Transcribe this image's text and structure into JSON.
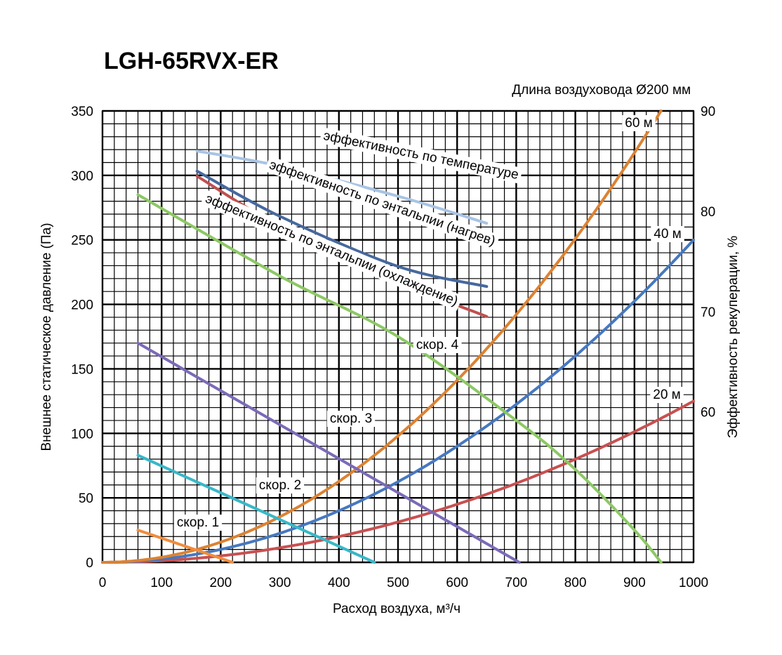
{
  "chart_data": {
    "type": "line",
    "title": "LGH-65RVX-ER",
    "subtitle": "Длина воздуховода Ø200 мм",
    "xlabel": "Расход воздуха, м³/ч",
    "ylabel": "Внешнее статическое давление (Па)",
    "y2label": "Эффективность рекуперации, %",
    "xlim": [
      0,
      1000
    ],
    "ylim": [
      0,
      350
    ],
    "y2lim": [
      45,
      90
    ],
    "x_ticks": [
      "0",
      "100",
      "200",
      "300",
      "400",
      "500",
      "600",
      "700",
      "800",
      "900",
      "1000"
    ],
    "y_ticks": [
      "0",
      "50",
      "100",
      "150",
      "200",
      "250",
      "300",
      "350"
    ],
    "y2_ticks": [
      "60",
      "70",
      "80",
      "90"
    ],
    "grid": true,
    "fan_curves": [
      {
        "name": "скор. 1",
        "color": "#f08c3c",
        "x": [
          60,
          220
        ],
        "y": [
          25,
          0
        ]
      },
      {
        "name": "скор. 2",
        "color": "#38b8c8",
        "x": [
          60,
          460
        ],
        "y": [
          83,
          0
        ]
      },
      {
        "name": "скор. 3",
        "color": "#7b6ab8",
        "x": [
          60,
          705
        ],
        "y": [
          170,
          0
        ]
      },
      {
        "name": "скор. 4",
        "color": "#8cc864",
        "x": [
          60,
          300,
          500,
          700,
          800,
          900,
          945
        ],
        "y": [
          285,
          222,
          175,
          110,
          72,
          25,
          0
        ]
      }
    ],
    "duct_curves": [
      {
        "name": "20 м",
        "color": "#c85050",
        "k": 0.000125
      },
      {
        "name": "40 м",
        "color": "#4678c0",
        "k": 0.00025
      },
      {
        "name": "60 м",
        "color": "#dc8232",
        "k": 0.000392
      }
    ],
    "efficiency_curves": [
      {
        "name": "эффективность по температуре",
        "color": "#a8c4e4",
        "x": [
          160,
          300,
          500,
          650
        ],
        "y": [
          86,
          84.5,
          81.5,
          78.8
        ]
      },
      {
        "name": "эффективность по энтальпии (нагрев)",
        "color": "#46689e",
        "x": [
          160,
          300,
          500,
          650
        ],
        "y": [
          84,
          79.5,
          74.5,
          72.5
        ]
      },
      {
        "name": "эффективность по энтальпии (охлаждение)",
        "color": "#c05050",
        "x": [
          160,
          300,
          500,
          650
        ],
        "y": [
          83.5,
          78.5,
          73,
          69.5
        ]
      }
    ]
  }
}
